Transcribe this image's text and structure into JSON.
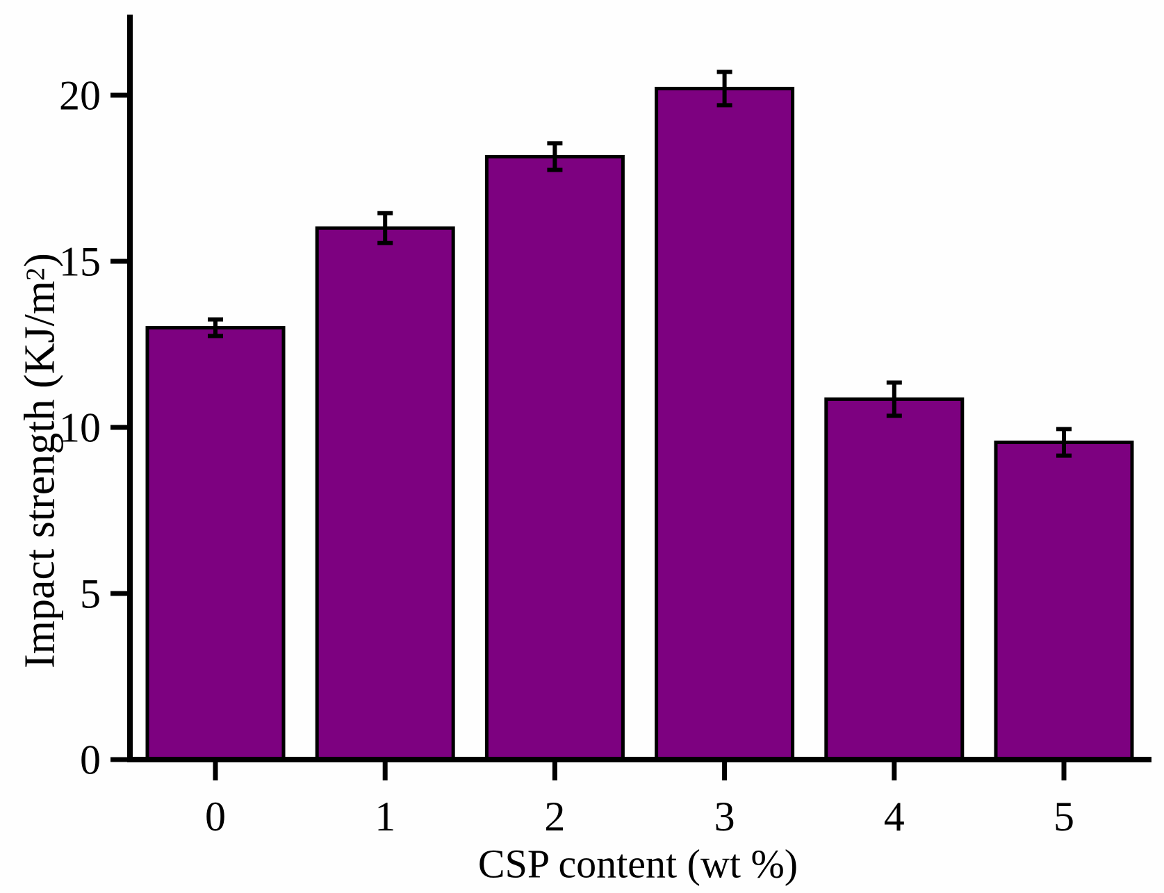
{
  "figure": {
    "xlabel": "CSP content (wt %)",
    "ylabel": "Impact strength (KJ/m²)",
    "ylabel_parts": {
      "pre": "Impact strength (KJ/m",
      "sup": "2",
      "post": ")"
    }
  },
  "colors": {
    "bar_fill": "#7D0180",
    "bar_border": "#000000",
    "axis": "#000000",
    "background": "#fefefe",
    "text": "#000000"
  },
  "chart_data": {
    "type": "bar",
    "title": "",
    "xlabel": "CSP content (wt %)",
    "ylabel": "Impact strength (KJ/m²)",
    "categories": [
      "0",
      "1",
      "2",
      "3",
      "4",
      "5"
    ],
    "values": [
      13.0,
      16.0,
      18.15,
      20.2,
      10.85,
      9.55
    ],
    "error_bars": [
      0.25,
      0.45,
      0.4,
      0.5,
      0.5,
      0.4
    ],
    "yticks": [
      0,
      5,
      10,
      15,
      20
    ],
    "ylim": [
      0,
      22.4
    ],
    "grid": false,
    "legend": "none",
    "bar_color": "#7D0180"
  }
}
